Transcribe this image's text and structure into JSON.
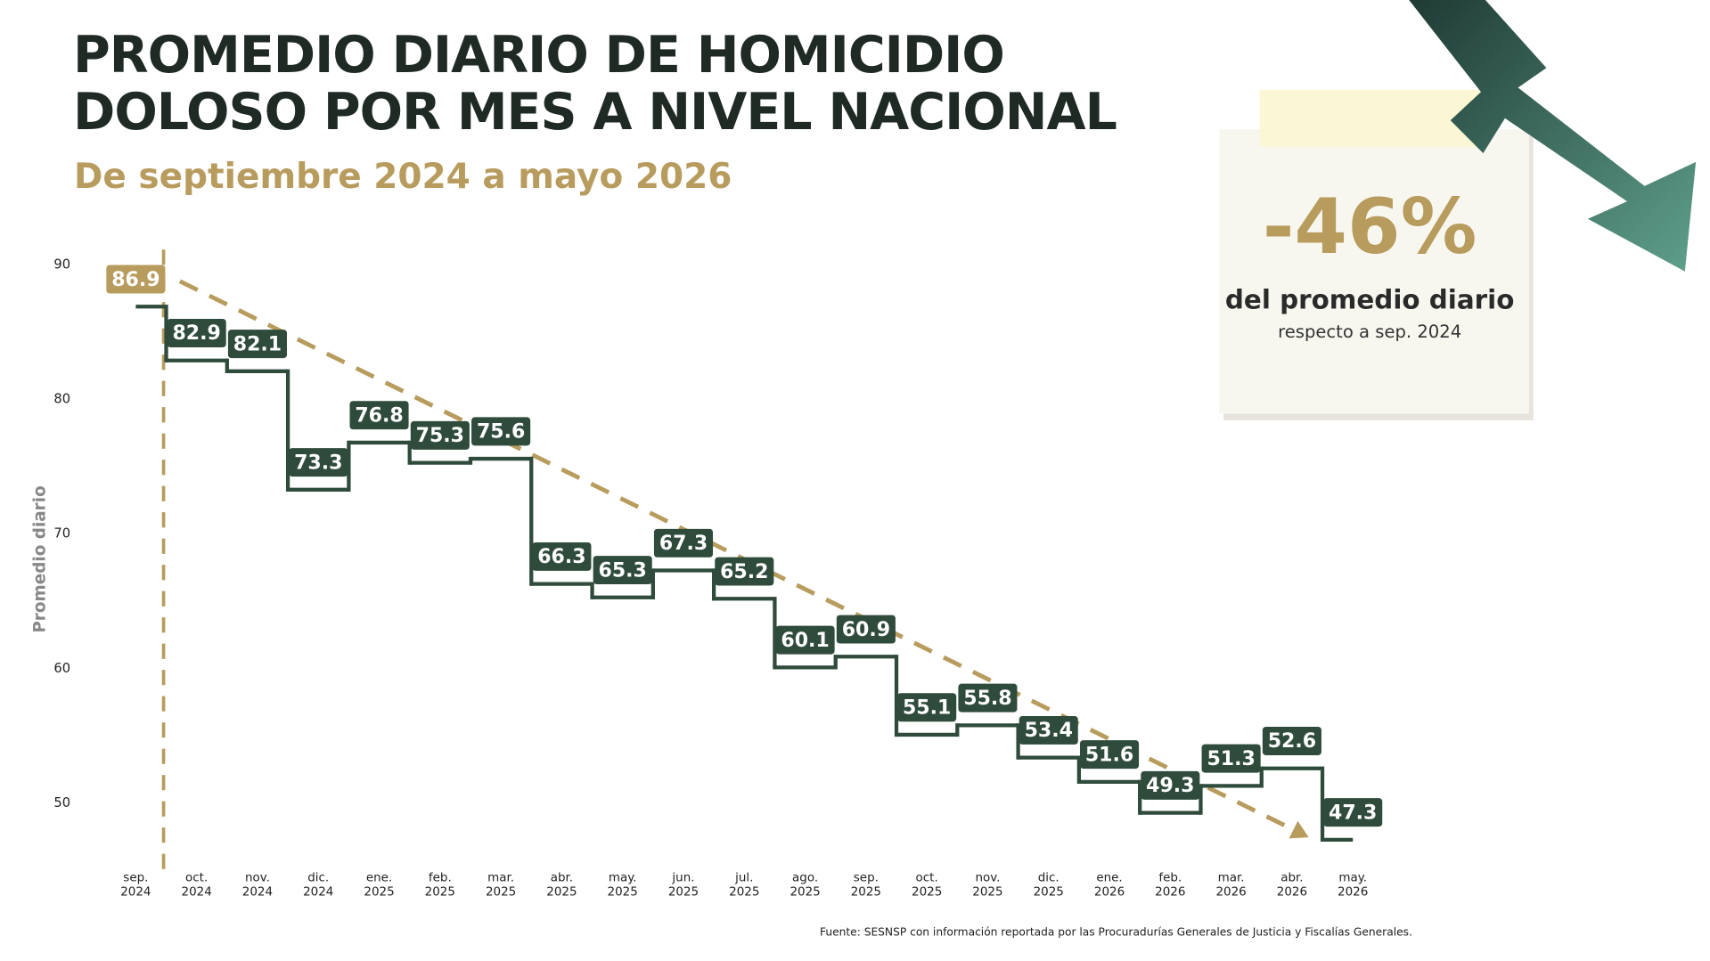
{
  "chart_data": {
    "type": "step",
    "title": "PROMEDIO DIARIO DE HOMICIDIO DOLOSO POR MES A NIVEL NACIONAL",
    "subtitle": "De septiembre 2024 a mayo 2026",
    "y_label": "Promedio diario",
    "categories": [
      "sep. 2024",
      "oct. 2024",
      "nov. 2024",
      "dic. 2024",
      "ene. 2025",
      "feb. 2025",
      "mar. 2025",
      "abr. 2025",
      "may. 2025",
      "jun. 2025",
      "jul. 2025",
      "ago. 2025",
      "sep. 2025",
      "oct. 2025",
      "nov. 2025",
      "dic. 2025",
      "ene. 2026",
      "feb. 2026",
      "mar. 2026",
      "abr. 2026",
      "may. 2026"
    ],
    "values": [
      86.9,
      82.9,
      82.1,
      73.3,
      76.8,
      75.3,
      75.6,
      66.3,
      65.3,
      67.3,
      65.2,
      60.1,
      60.9,
      55.1,
      55.8,
      53.4,
      51.6,
      49.3,
      51.3,
      52.6,
      47.3
    ],
    "color": "#2f4b3b",
    "highlight_color": "#b89c5e",
    "ylim": [
      45,
      90
    ],
    "yticks": [
      50,
      60,
      70,
      80,
      90
    ],
    "callout": {
      "value": "-46%",
      "text": "del promedio diario",
      "subtext": "respecto a sep. 2024"
    },
    "source": "Fuente: SESNSP con información reportada por las Procuradurías Generales de Justicia y Fiscalías Generales."
  }
}
